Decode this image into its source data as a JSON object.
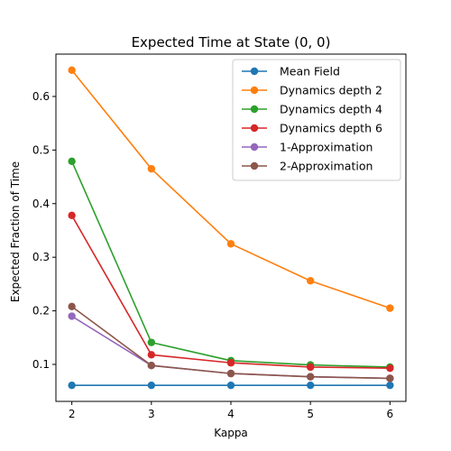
{
  "chart_data": {
    "type": "line",
    "title": "Expected Time at State (0, 0)",
    "xlabel": "Kappa",
    "ylabel": "Expected Fraction of Time",
    "x": [
      2,
      3,
      4,
      5,
      6
    ],
    "xlim": [
      1.8,
      6.2
    ],
    "ylim": [
      0.031,
      0.679
    ],
    "xticks": [
      2,
      3,
      4,
      5,
      6
    ],
    "yticks": [
      0.1,
      0.2,
      0.3,
      0.4,
      0.5,
      0.6
    ],
    "xtick_labels": [
      "2",
      "3",
      "4",
      "5",
      "6"
    ],
    "ytick_labels": [
      "0.1",
      "0.2",
      "0.3",
      "0.4",
      "0.5",
      "0.6"
    ],
    "grid": false,
    "legend_position": "top-right",
    "series": [
      {
        "name": "Mean Field",
        "color": "#1f77b4",
        "values": [
          0.061,
          0.061,
          0.061,
          0.061,
          0.061
        ]
      },
      {
        "name": "Dynamics depth 2",
        "color": "#ff7f0e",
        "values": [
          0.649,
          0.465,
          0.325,
          0.256,
          0.205
        ]
      },
      {
        "name": "Dynamics depth 4",
        "color": "#2ca02c",
        "values": [
          0.479,
          0.141,
          0.107,
          0.099,
          0.095
        ]
      },
      {
        "name": "Dynamics depth 6",
        "color": "#d62728",
        "values": [
          0.378,
          0.118,
          0.103,
          0.095,
          0.093
        ]
      },
      {
        "name": "1-Approximation",
        "color": "#9467bd",
        "values": [
          0.19,
          0.098,
          0.083,
          0.077,
          0.074
        ]
      },
      {
        "name": "2-Approximation",
        "color": "#8c564b",
        "values": [
          0.208,
          0.098,
          0.083,
          0.077,
          0.074
        ]
      }
    ]
  }
}
